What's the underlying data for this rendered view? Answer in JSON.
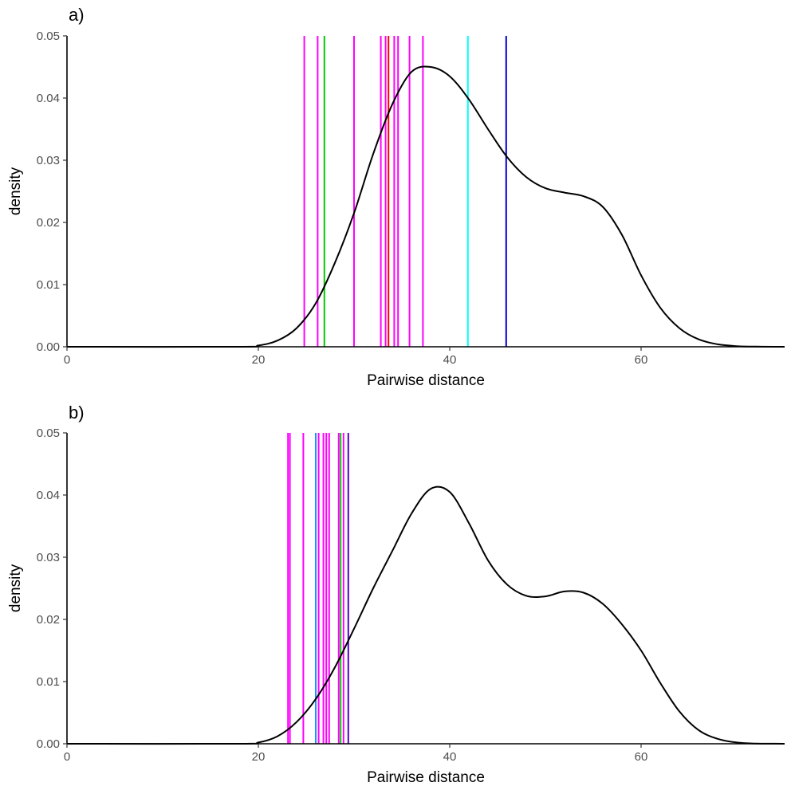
{
  "chart_data": [
    {
      "panel": "a)",
      "type": "line",
      "xlabel": "Pairwise distance",
      "ylabel": "density",
      "xlim": [
        0,
        75
      ],
      "ylim": [
        0,
        0.05
      ],
      "xticks": [
        0,
        20,
        40,
        60
      ],
      "xtick_labels": [
        "0",
        "20",
        "40",
        "60"
      ],
      "yticks": [
        0,
        0.01,
        0.02,
        0.03,
        0.04,
        0.05
      ],
      "ytick_labels": [
        "0.00",
        "0.01",
        "0.02",
        "0.03",
        "0.04",
        "0.05"
      ],
      "grid": false,
      "density_curve": {
        "x": [
          0,
          18,
          20,
          22,
          24,
          26,
          28,
          30,
          32,
          34,
          36,
          38,
          40,
          42,
          44,
          46,
          48,
          50,
          52,
          54,
          56,
          58,
          60,
          62,
          64,
          66,
          68,
          70,
          72,
          75
        ],
        "y": [
          0,
          0,
          0.0002,
          0.001,
          0.003,
          0.007,
          0.0135,
          0.0215,
          0.031,
          0.039,
          0.0442,
          0.045,
          0.0435,
          0.0398,
          0.035,
          0.0305,
          0.0273,
          0.0255,
          0.0248,
          0.0242,
          0.0225,
          0.018,
          0.0115,
          0.0063,
          0.003,
          0.0012,
          0.0004,
          0.0001,
          2e-05,
          0
        ]
      },
      "reference_lines": [
        {
          "x": 24.8,
          "color": "#ff00ff"
        },
        {
          "x": 26.2,
          "color": "#ff00ff"
        },
        {
          "x": 26.9,
          "color": "#00cc00"
        },
        {
          "x": 30.0,
          "color": "#ff00ff"
        },
        {
          "x": 32.8,
          "color": "#ff00ff"
        },
        {
          "x": 33.3,
          "color": "#ff00ff"
        },
        {
          "x": 33.6,
          "color": "#ff0000"
        },
        {
          "x": 34.2,
          "color": "#ff00ff"
        },
        {
          "x": 34.6,
          "color": "#ff00ff"
        },
        {
          "x": 35.8,
          "color": "#ff00ff"
        },
        {
          "x": 37.2,
          "color": "#ff00ff"
        },
        {
          "x": 41.9,
          "color": "#00ffff"
        },
        {
          "x": 45.9,
          "color": "#0000cc"
        }
      ]
    },
    {
      "panel": "b)",
      "type": "line",
      "xlabel": "Pairwise distance",
      "ylabel": "density",
      "xlim": [
        0,
        75
      ],
      "ylim": [
        0,
        0.05
      ],
      "xticks": [
        0,
        20,
        40,
        60
      ],
      "xtick_labels": [
        "0",
        "20",
        "40",
        "60"
      ],
      "yticks": [
        0,
        0.01,
        0.02,
        0.03,
        0.04,
        0.05
      ],
      "ytick_labels": [
        "0.00",
        "0.01",
        "0.02",
        "0.03",
        "0.04",
        "0.05"
      ],
      "grid": false,
      "density_curve": {
        "x": [
          0,
          18,
          20,
          22,
          24,
          26,
          28,
          30,
          32,
          34,
          36,
          38,
          40,
          42,
          44,
          46,
          48,
          50,
          52,
          54,
          56,
          58,
          60,
          62,
          64,
          66,
          68,
          70,
          72,
          75
        ],
        "y": [
          0,
          0,
          0.0002,
          0.0012,
          0.0035,
          0.0072,
          0.0123,
          0.0185,
          0.025,
          0.031,
          0.037,
          0.041,
          0.0405,
          0.0355,
          0.0295,
          0.0256,
          0.0238,
          0.0237,
          0.0245,
          0.0243,
          0.0225,
          0.0192,
          0.015,
          0.0098,
          0.0052,
          0.0022,
          0.0008,
          0.0002,
          4e-05,
          0
        ]
      },
      "reference_lines": [
        {
          "x": 23.1,
          "color": "#ff00ff"
        },
        {
          "x": 23.3,
          "color": "#ff00ff"
        },
        {
          "x": 24.7,
          "color": "#ff00ff"
        },
        {
          "x": 26.0,
          "color": "#1e90ff"
        },
        {
          "x": 26.3,
          "color": "#ff00ff"
        },
        {
          "x": 26.8,
          "color": "#ff00ff"
        },
        {
          "x": 27.1,
          "color": "#ff00ff"
        },
        {
          "x": 27.4,
          "color": "#ff00ff"
        },
        {
          "x": 28.4,
          "color": "#ff00ff"
        },
        {
          "x": 28.6,
          "color": "#00cc00"
        },
        {
          "x": 28.9,
          "color": "#ff00ff"
        },
        {
          "x": 29.4,
          "color": "#5500cc"
        }
      ]
    }
  ]
}
